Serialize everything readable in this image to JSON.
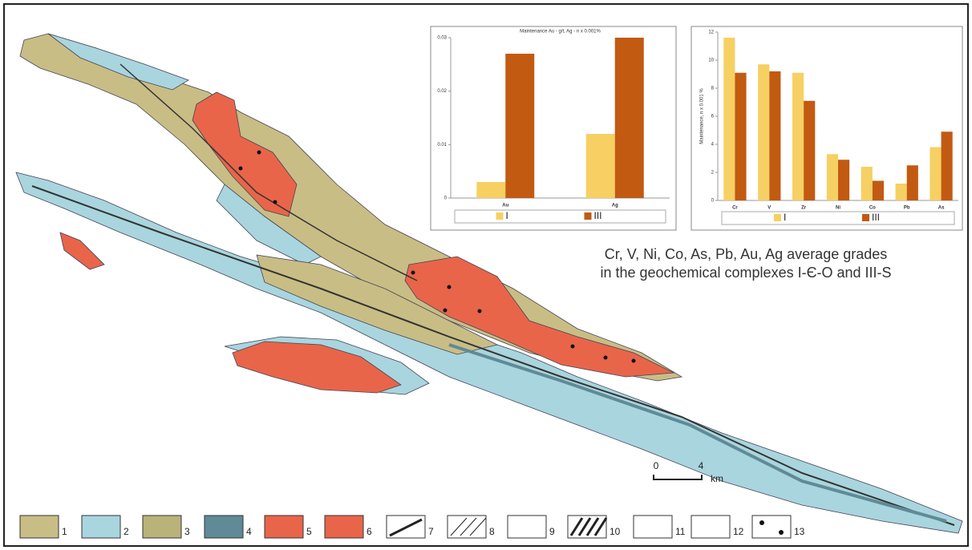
{
  "caption": [
    "Cr, V, Ni, Co, As, Pb, Au, Ag average grades",
    "in the geochemical complexes I-Є-O and III-S"
  ],
  "scale_bar": {
    "start": 0,
    "end": 4,
    "unit": "km"
  },
  "legend": [
    "1",
    "2",
    "3",
    "4",
    "5",
    "6",
    "7",
    "8",
    "9",
    "10",
    "11",
    "12",
    "13"
  ],
  "chart_data": [
    {
      "type": "bar",
      "title": "Maintenance Au - g/t, Ag - n x 0.001%",
      "categories": [
        "Au",
        "Ag"
      ],
      "series": [
        {
          "name": "I",
          "color": "#f6d063",
          "values": [
            0.003,
            0.012
          ]
        },
        {
          "name": "III",
          "color": "#c25a12",
          "values": [
            0.027,
            0.03
          ]
        }
      ],
      "ylim": [
        0,
        0.03
      ],
      "yticks": [
        0,
        0.01,
        0.02,
        0.03
      ]
    },
    {
      "type": "bar",
      "y_label": "Maintenance, n x 0.001 %",
      "categories": [
        "Cr",
        "V",
        "Zr",
        "Ni",
        "Co",
        "Pb",
        "As"
      ],
      "series": [
        {
          "name": "I",
          "color": "#f6d063",
          "values": [
            11.6,
            9.7,
            9.1,
            3.3,
            2.4,
            1.2,
            3.8
          ]
        },
        {
          "name": "III",
          "color": "#c25a12",
          "values": [
            9.1,
            9.2,
            7.1,
            2.9,
            1.4,
            2.5,
            4.9
          ]
        }
      ],
      "ylim": [
        0,
        12
      ],
      "yticks": [
        0,
        2,
        4,
        6,
        8,
        10,
        12
      ]
    }
  ]
}
